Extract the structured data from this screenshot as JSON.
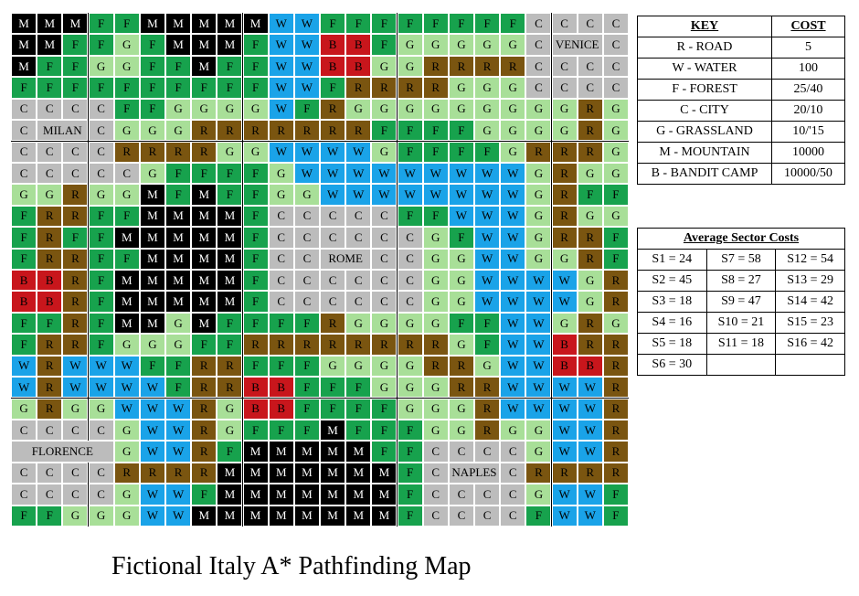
{
  "grid_rows": [
    [
      "M",
      "M",
      "M",
      "F",
      "F",
      "M",
      "M",
      "M",
      "M",
      "M",
      "W",
      "W",
      "F",
      "F",
      "F",
      "F",
      "F",
      "F",
      "F",
      "F",
      "C",
      "C",
      "C",
      "C"
    ],
    [
      "M",
      "M",
      "F",
      "F",
      "G",
      "F",
      "M",
      "M",
      "M",
      "F",
      "W",
      "W",
      "B",
      "B",
      "F",
      "G",
      "G",
      "G",
      "G",
      "G",
      "C",
      "C",
      "C",
      "C"
    ],
    [
      "M",
      "F",
      "F",
      "G",
      "G",
      "F",
      "F",
      "M",
      "F",
      "F",
      "W",
      "W",
      "B",
      "B",
      "G",
      "G",
      "R",
      "R",
      "R",
      "R",
      "C",
      "C",
      "C",
      "C"
    ],
    [
      "F",
      "F",
      "F",
      "F",
      "F",
      "F",
      "F",
      "F",
      "F",
      "F",
      "W",
      "W",
      "F",
      "R",
      "R",
      "R",
      "R",
      "G",
      "G",
      "G",
      "C",
      "C",
      "C",
      "C"
    ],
    [
      "C",
      "C",
      "C",
      "C",
      "F",
      "F",
      "G",
      "G",
      "G",
      "G",
      "W",
      "F",
      "R",
      "G",
      "G",
      "G",
      "G",
      "G",
      "G",
      "G",
      "G",
      "G",
      "R",
      "G"
    ],
    [
      "C",
      "C",
      "C",
      "C",
      "G",
      "G",
      "G",
      "R",
      "R",
      "R",
      "R",
      "R",
      "R",
      "R",
      "F",
      "F",
      "F",
      "F",
      "G",
      "G",
      "G",
      "G",
      "R",
      "G"
    ],
    [
      "C",
      "C",
      "C",
      "C",
      "R",
      "R",
      "R",
      "R",
      "G",
      "G",
      "W",
      "W",
      "W",
      "W",
      "G",
      "F",
      "F",
      "F",
      "F",
      "G",
      "R",
      "R",
      "R",
      "G"
    ],
    [
      "C",
      "C",
      "C",
      "C",
      "C",
      "G",
      "F",
      "F",
      "F",
      "F",
      "G",
      "W",
      "W",
      "W",
      "W",
      "W",
      "W",
      "W",
      "W",
      "W",
      "G",
      "R",
      "G",
      "G"
    ],
    [
      "G",
      "G",
      "R",
      "G",
      "G",
      "M",
      "F",
      "M",
      "F",
      "F",
      "G",
      "G",
      "W",
      "W",
      "W",
      "W",
      "W",
      "W",
      "W",
      "W",
      "G",
      "R",
      "F",
      "F"
    ],
    [
      "F",
      "R",
      "R",
      "F",
      "F",
      "M",
      "M",
      "M",
      "M",
      "F",
      "C",
      "C",
      "C",
      "C",
      "C",
      "F",
      "F",
      "W",
      "W",
      "W",
      "G",
      "R",
      "G",
      "G"
    ],
    [
      "F",
      "R",
      "F",
      "F",
      "M",
      "M",
      "M",
      "M",
      "M",
      "F",
      "C",
      "C",
      "C",
      "C",
      "C",
      "C",
      "G",
      "F",
      "W",
      "W",
      "G",
      "R",
      "R",
      "F"
    ],
    [
      "F",
      "R",
      "R",
      "F",
      "F",
      "M",
      "M",
      "M",
      "M",
      "F",
      "C",
      "C",
      "C",
      "C",
      "C",
      "C",
      "G",
      "G",
      "W",
      "W",
      "G",
      "G",
      "R",
      "F"
    ],
    [
      "B",
      "B",
      "R",
      "F",
      "M",
      "M",
      "M",
      "M",
      "M",
      "F",
      "C",
      "C",
      "C",
      "C",
      "C",
      "C",
      "G",
      "G",
      "W",
      "W",
      "W",
      "W",
      "G",
      "R"
    ],
    [
      "B",
      "B",
      "R",
      "F",
      "M",
      "M",
      "M",
      "M",
      "M",
      "F",
      "C",
      "C",
      "C",
      "C",
      "C",
      "C",
      "G",
      "G",
      "W",
      "W",
      "W",
      "W",
      "G",
      "R"
    ],
    [
      "F",
      "F",
      "R",
      "F",
      "M",
      "M",
      "G",
      "M",
      "F",
      "F",
      "F",
      "F",
      "R",
      "G",
      "G",
      "G",
      "G",
      "F",
      "F",
      "W",
      "W",
      "G",
      "R",
      "G"
    ],
    [
      "F",
      "R",
      "R",
      "F",
      "G",
      "G",
      "G",
      "F",
      "F",
      "R",
      "R",
      "R",
      "R",
      "R",
      "R",
      "R",
      "R",
      "G",
      "F",
      "W",
      "W",
      "B",
      "R",
      "R"
    ],
    [
      "W",
      "R",
      "W",
      "W",
      "W",
      "F",
      "F",
      "R",
      "R",
      "F",
      "F",
      "F",
      "G",
      "G",
      "G",
      "G",
      "R",
      "R",
      "G",
      "W",
      "W",
      "B",
      "B",
      "R"
    ],
    [
      "W",
      "R",
      "W",
      "W",
      "W",
      "W",
      "F",
      "R",
      "R",
      "B",
      "B",
      "F",
      "F",
      "F",
      "G",
      "G",
      "G",
      "R",
      "R",
      "W",
      "W",
      "W",
      "W",
      "R"
    ],
    [
      "G",
      "R",
      "G",
      "G",
      "W",
      "W",
      "W",
      "R",
      "G",
      "B",
      "B",
      "F",
      "F",
      "F",
      "F",
      "G",
      "G",
      "G",
      "R",
      "W",
      "W",
      "W",
      "W",
      "R"
    ],
    [
      "C",
      "C",
      "C",
      "C",
      "G",
      "W",
      "W",
      "R",
      "G",
      "F",
      "F",
      "F",
      "M",
      "F",
      "F",
      "F",
      "G",
      "G",
      "R",
      "G",
      "G",
      "W",
      "W",
      "R"
    ],
    [
      "C",
      "C",
      "C",
      "C",
      "G",
      "W",
      "W",
      "R",
      "F",
      "M",
      "M",
      "M",
      "M",
      "M",
      "F",
      "F",
      "C",
      "C",
      "C",
      "C",
      "G",
      "W",
      "W",
      "R"
    ],
    [
      "C",
      "C",
      "C",
      "C",
      "R",
      "R",
      "R",
      "R",
      "M",
      "M",
      "M",
      "M",
      "M",
      "M",
      "M",
      "F",
      "C",
      "C",
      "C",
      "C",
      "R",
      "R",
      "R",
      "R"
    ],
    [
      "C",
      "C",
      "C",
      "C",
      "G",
      "W",
      "W",
      "F",
      "M",
      "M",
      "M",
      "M",
      "M",
      "M",
      "M",
      "F",
      "C",
      "C",
      "C",
      "C",
      "G",
      "W",
      "W",
      "F"
    ],
    [
      "F",
      "F",
      "G",
      "G",
      "G",
      "W",
      "W",
      "M",
      "M",
      "M",
      "M",
      "M",
      "M",
      "M",
      "M",
      "F",
      "C",
      "C",
      "C",
      "C",
      "F",
      "W",
      "W",
      "F"
    ]
  ],
  "city_labels": [
    {
      "text": "VENICE",
      "row": 1,
      "col": 21,
      "span": 2
    },
    {
      "text": "MILAN",
      "row": 5,
      "col": 1,
      "span": 2
    },
    {
      "text": "ROME",
      "row": 11,
      "col": 12,
      "span": 2
    },
    {
      "text": "FLORENCE",
      "row": 20,
      "col": 0,
      "span": 4
    },
    {
      "text": "NAPLES",
      "row": 21,
      "col": 17,
      "span": 2
    }
  ],
  "key": {
    "header_key": "KEY",
    "header_cost": "COST",
    "rows": [
      {
        "label": "R - ROAD",
        "cost": "5"
      },
      {
        "label": "W - WATER",
        "cost": "100"
      },
      {
        "label": "F - FOREST",
        "cost": "25/40"
      },
      {
        "label": "C - CITY",
        "cost": "20/10"
      },
      {
        "label": "G - GRASSLAND",
        "cost": "10/'15"
      },
      {
        "label": "M - MOUNTAIN",
        "cost": "10000"
      },
      {
        "label": "B - BANDIT CAMP",
        "cost": "10000/50"
      }
    ]
  },
  "sectors": {
    "title": "Average Sector Costs",
    "rows": [
      [
        "S1 = 24",
        "S7 = 58",
        "S12 = 54"
      ],
      [
        "S2 = 45",
        "S8 = 27",
        "S13 = 29"
      ],
      [
        "S3 = 18",
        "S9 = 47",
        "S14 = 42"
      ],
      [
        "S4 = 16",
        "S10 = 21",
        "S15 = 23"
      ],
      [
        "S5 = 18",
        "S11 = 18",
        "S16 = 42"
      ],
      [
        "S6 = 30",
        "",
        ""
      ]
    ]
  },
  "title": "Fictional Italy A* Pathfinding Map"
}
